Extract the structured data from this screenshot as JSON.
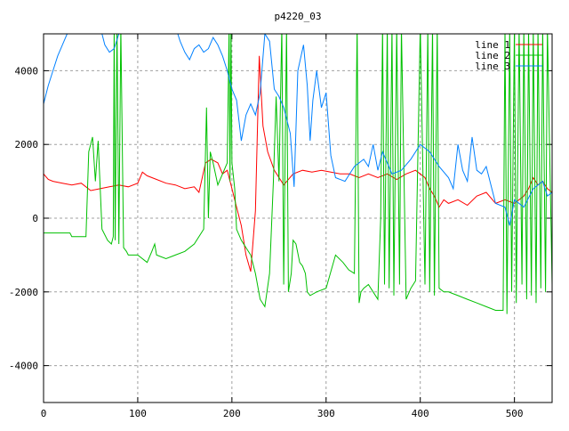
{
  "chart_data": {
    "type": "line",
    "title": "p4220_03",
    "xlabel": "",
    "ylabel": "",
    "xlim": [
      0,
      540
    ],
    "ylim": [
      -5000,
      5000
    ],
    "grid": true,
    "legend_position": "top-right",
    "x_ticks": [
      0,
      100,
      200,
      300,
      400,
      500
    ],
    "y_ticks": [
      -4000,
      -2000,
      0,
      2000,
      4000
    ],
    "series": [
      {
        "name": "line 1",
        "color": "#ff0000",
        "x": [
          0,
          5,
          10,
          20,
          30,
          40,
          50,
          60,
          70,
          80,
          90,
          100,
          105,
          110,
          120,
          130,
          140,
          150,
          160,
          165,
          172,
          178,
          185,
          190,
          195,
          200,
          205,
          210,
          215,
          220,
          225,
          229,
          233,
          238,
          245,
          255,
          265,
          275,
          285,
          295,
          305,
          315,
          325,
          335,
          345,
          355,
          365,
          375,
          385,
          395,
          405,
          410,
          415,
          420,
          425,
          430,
          440,
          450,
          460,
          470,
          480,
          490,
          500,
          510,
          515,
          520,
          525,
          530,
          535,
          540
        ],
        "y": [
          1200,
          1050,
          1000,
          950,
          900,
          950,
          750,
          800,
          850,
          900,
          850,
          950,
          1250,
          1150,
          1050,
          950,
          900,
          800,
          850,
          700,
          1500,
          1600,
          1500,
          1200,
          1300,
          800,
          300,
          -200,
          -1000,
          -1450,
          200,
          4400,
          2500,
          1800,
          1300,
          900,
          1200,
          1300,
          1250,
          1300,
          1250,
          1200,
          1200,
          1100,
          1200,
          1100,
          1200,
          1050,
          1200,
          1300,
          1100,
          800,
          600,
          300,
          500,
          400,
          500,
          350,
          600,
          700,
          400,
          500,
          400,
          600,
          800,
          1100,
          900,
          1000,
          800,
          700
        ]
      },
      {
        "name": "line 2",
        "color": "#00c000",
        "x": [
          0,
          28,
          30,
          45,
          48,
          52,
          55,
          58,
          62,
          68,
          72,
          74,
          75,
          76,
          78,
          80,
          82,
          85,
          88,
          90,
          100,
          110,
          115,
          118,
          120,
          130,
          140,
          150,
          160,
          170,
          173,
          175,
          177,
          180,
          185,
          190,
          195,
          197,
          198,
          199,
          200,
          203,
          205,
          210,
          215,
          220,
          225,
          230,
          235,
          240,
          244,
          247,
          250,
          253,
          255,
          258,
          260,
          263,
          265,
          268,
          272,
          275,
          278,
          280,
          283,
          290,
          300,
          310,
          318,
          324,
          330,
          333,
          335,
          337,
          340,
          345,
          350,
          355,
          358,
          360,
          362,
          365,
          367,
          370,
          372,
          375,
          378,
          380,
          385,
          390,
          395,
          400,
          405,
          408,
          410,
          413,
          415,
          418,
          420,
          425,
          430,
          440,
          450,
          460,
          470,
          480,
          488,
          490,
          492,
          495,
          497,
          500,
          502,
          505,
          508,
          510,
          513,
          515,
          518,
          520,
          523,
          525,
          528,
          530,
          533,
          535,
          540
        ],
        "y": [
          -400,
          -400,
          -500,
          -500,
          1800,
          2200,
          1000,
          2100,
          -300,
          -600,
          -700,
          -500,
          5200,
          -600,
          5200,
          -700,
          5200,
          -800,
          -900,
          -1000,
          -1000,
          -1200,
          -900,
          -700,
          -1000,
          -1100,
          -1000,
          -900,
          -700,
          -300,
          3000,
          0,
          1800,
          1500,
          900,
          1200,
          1500,
          5200,
          1000,
          5200,
          1500,
          800,
          -300,
          -600,
          -800,
          -1000,
          -1500,
          -2200,
          -2400,
          -1500,
          1000,
          3300,
          1000,
          5200,
          -1800,
          5200,
          -2000,
          -1500,
          -600,
          -700,
          -1200,
          -1300,
          -1500,
          -2000,
          -2100,
          -2000,
          -1900,
          -1000,
          -1200,
          -1400,
          -1500,
          5200,
          -2300,
          -2000,
          -1900,
          -1800,
          -2000,
          -2200,
          0,
          5200,
          -1800,
          5200,
          -1900,
          5200,
          -2100,
          5200,
          -1800,
          5200,
          -2200,
          -1900,
          -1700,
          5200,
          -1800,
          5200,
          -2000,
          5200,
          -2100,
          5200,
          -1900,
          -2000,
          -2000,
          -2100,
          -2200,
          -2300,
          -2400,
          -2500,
          -2500,
          5200,
          -2600,
          5200,
          -2000,
          5200,
          -2300,
          5200,
          -1800,
          5200,
          -2200,
          5200,
          -2100,
          5200,
          -2300,
          5200,
          -1900,
          5200,
          -2000,
          5200,
          -1800
        ]
      },
      {
        "name": "line 3",
        "color": "#0080ff",
        "x": [
          0,
          5,
          10,
          15,
          20,
          25,
          30,
          60,
          65,
          70,
          75,
          80,
          85,
          140,
          145,
          150,
          155,
          160,
          165,
          170,
          175,
          180,
          185,
          190,
          195,
          200,
          205,
          210,
          215,
          220,
          225,
          230,
          235,
          240,
          245,
          250,
          255,
          258,
          262,
          266,
          270,
          276,
          280,
          283,
          286,
          290,
          295,
          300,
          305,
          310,
          320,
          330,
          340,
          345,
          350,
          355,
          360,
          370,
          380,
          390,
          400,
          410,
          420,
          430,
          435,
          440,
          445,
          450,
          455,
          460,
          465,
          470,
          480,
          490,
          495,
          500,
          510,
          520,
          530,
          535,
          540
        ],
        "y": [
          3100,
          3600,
          4000,
          4400,
          4700,
          5000,
          5200,
          5200,
          4700,
          4500,
          4600,
          5000,
          5200,
          5200,
          4800,
          4500,
          4300,
          4600,
          4700,
          4500,
          4600,
          4900,
          4700,
          4400,
          4000,
          3500,
          3200,
          2100,
          2800,
          3100,
          2800,
          3400,
          5000,
          4800,
          3500,
          3300,
          3000,
          2700,
          2300,
          850,
          4000,
          4700,
          3600,
          2100,
          3200,
          4000,
          3000,
          3400,
          1700,
          1100,
          1000,
          1400,
          1600,
          1400,
          2000,
          1300,
          1800,
          1200,
          1300,
          1600,
          2000,
          1800,
          1400,
          1100,
          800,
          2000,
          1300,
          1000,
          2200,
          1300,
          1200,
          1400,
          400,
          300,
          -200,
          500,
          300,
          800,
          1000,
          600,
          700
        ]
      }
    ]
  }
}
